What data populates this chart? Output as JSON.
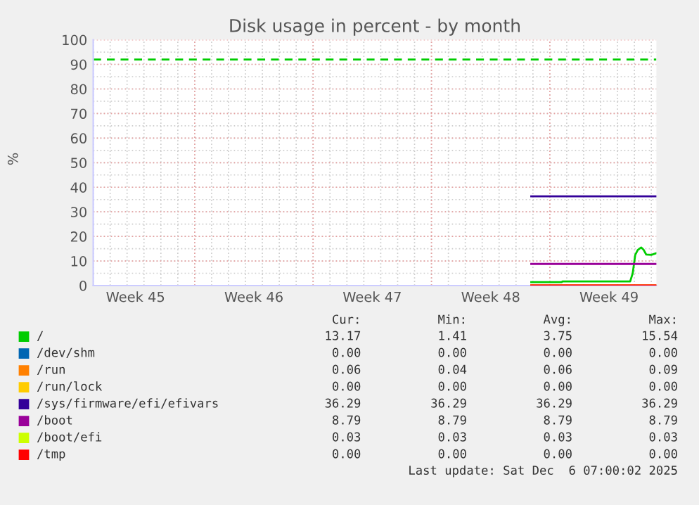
{
  "chart_data": {
    "type": "line",
    "title": "Disk usage in percent - by month",
    "ylabel": "%",
    "xlim": [
      "2025-11-04T00:00",
      "2025-12-07T07:12"
    ],
    "xticks": [
      {
        "value": "2025-11-06T12:00",
        "label": "Week 45"
      },
      {
        "value": "2025-11-10T00:00",
        "label": null
      },
      {
        "value": "2025-11-13T12:00",
        "label": "Week 46"
      },
      {
        "value": "2025-11-17T00:00",
        "label": null
      },
      {
        "value": "2025-11-20T12:00",
        "label": "Week 47"
      },
      {
        "value": "2025-11-24T00:00",
        "label": null
      },
      {
        "value": "2025-11-27T12:00",
        "label": "Week 48"
      },
      {
        "value": "2025-12-01T00:00",
        "label": null
      },
      {
        "value": "2025-12-04T12:00",
        "label": "Week 49"
      }
    ],
    "ylim": [
      0,
      100
    ],
    "yticks": [
      0,
      10,
      20,
      30,
      40,
      50,
      60,
      70,
      80,
      90,
      100
    ],
    "grid": true,
    "legend": "bottom",
    "ref_lines": [
      {
        "axis": "y",
        "value": 92,
        "color": "#00cc00",
        "line_style": "dashed"
      }
    ],
    "series": [
      {
        "name": "/",
        "color": "#00cc00",
        "x": [
          "2025-11-29T21:36",
          "2025-12-01T16:48",
          "2025-12-01T18:00",
          "2025-12-05T18:00",
          "2025-12-05T21:36",
          "2025-12-06T01:12",
          "2025-12-06T04:48",
          "2025-12-06T09:36",
          "2025-12-06T13:12",
          "2025-12-06T16:48",
          "2025-12-07T00:00",
          "2025-12-07T07:12"
        ],
        "values": [
          1.4,
          1.4,
          1.7,
          1.7,
          5,
          12.5,
          14.5,
          15.5,
          14.5,
          12.6,
          12.5,
          13.2
        ]
      },
      {
        "name": "/dev/shm",
        "color": "#0066b3"
      },
      {
        "name": "/run",
        "color": "#ff8000",
        "x": [
          "2025-11-29T21:36",
          "2025-12-07T07:12"
        ],
        "values": [
          0.1,
          0.1
        ]
      },
      {
        "name": "/run/lock",
        "color": "#ffcc00"
      },
      {
        "name": "/sys/firmware/efi/efivars",
        "color": "#330099",
        "x": [
          "2025-11-29T21:36",
          "2025-12-07T07:12"
        ],
        "values": [
          36.3,
          36.3
        ]
      },
      {
        "name": "/boot",
        "color": "#990099",
        "x": [
          "2025-11-29T21:36",
          "2025-12-07T07:12"
        ],
        "values": [
          8.8,
          8.8
        ]
      },
      {
        "name": "/boot/efi",
        "color": "#ccff00"
      },
      {
        "name": "/tmp",
        "color": "#ff0000",
        "x": [
          "2025-11-29T21:36",
          "2025-12-07T07:12"
        ],
        "values": [
          0,
          0
        ]
      }
    ],
    "annotations": [
      "Cur:",
      "Min:",
      "Avg:",
      "Max:",
      "13.17",
      "1.41",
      "3.75",
      "15.54",
      "0.00",
      "0.00",
      "0.00",
      "0.00",
      "0.06",
      "0.04",
      "0.06",
      "0.09",
      "0.00",
      "0.00",
      "0.00",
      "0.00",
      "36.29",
      "36.29",
      "36.29",
      "36.29",
      "8.79",
      "8.79",
      "8.79",
      "8.79",
      "0.03",
      "0.03",
      "0.03",
      "0.03",
      "0.00",
      "0.00",
      "0.00",
      "0.00",
      "Last update: Sat Dec  6 07:00:02 2025"
    ]
  }
}
